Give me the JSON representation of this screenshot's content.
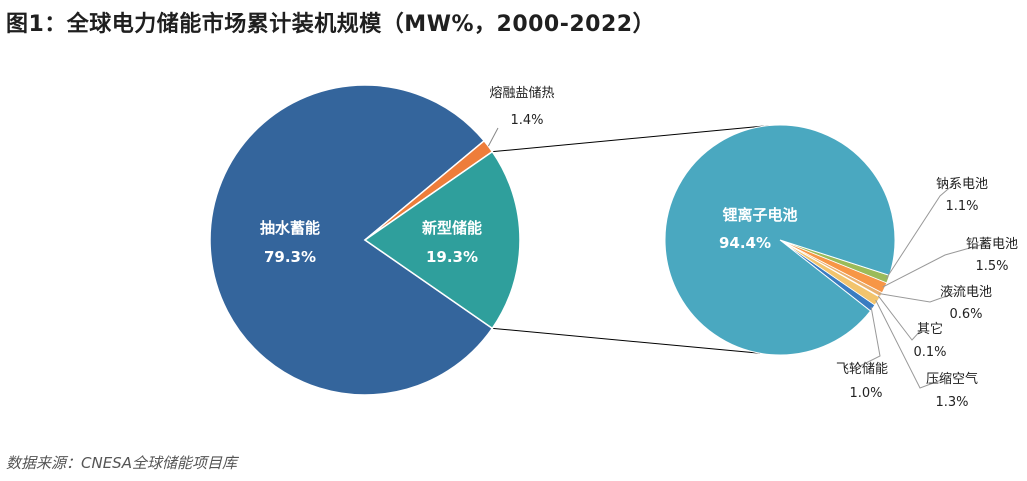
{
  "title": "图1：全球电力储能市场累计装机规模（MW%，2000-2022）",
  "source": "数据来源：CNESA全球储能项目库",
  "colors": {
    "pumped": "#34659c",
    "new": "#2f9f9c",
    "thermal": "#ee7d3a",
    "lithium": "#4aa8c0",
    "sodium": "#9bbb59",
    "lead": "#f79646",
    "flow": "#e8b070",
    "other": "#d9d9d9",
    "air": "#f2c46d",
    "flywheel": "#3a7cc1"
  },
  "chart_data": [
    {
      "type": "pie",
      "name": "main",
      "labels": [
        "抽水蓄能",
        "熔融盐储热",
        "新型储能"
      ],
      "values": [
        79.3,
        1.4,
        19.3
      ],
      "display": [
        "79.3%",
        "1.4%",
        "19.3%"
      ]
    },
    {
      "type": "pie",
      "name": "new-storage-breakdown",
      "labels": [
        "锂离子电池",
        "飞轮储能",
        "压缩空气",
        "其它",
        "液流电池",
        "铅蓄电池",
        "钠系电池"
      ],
      "values": [
        94.4,
        1.0,
        1.3,
        0.1,
        0.6,
        1.5,
        1.1
      ],
      "display": [
        "94.4%",
        "1.0%",
        "1.3%",
        "0.1%",
        "0.6%",
        "1.5%",
        "1.1%"
      ]
    }
  ]
}
